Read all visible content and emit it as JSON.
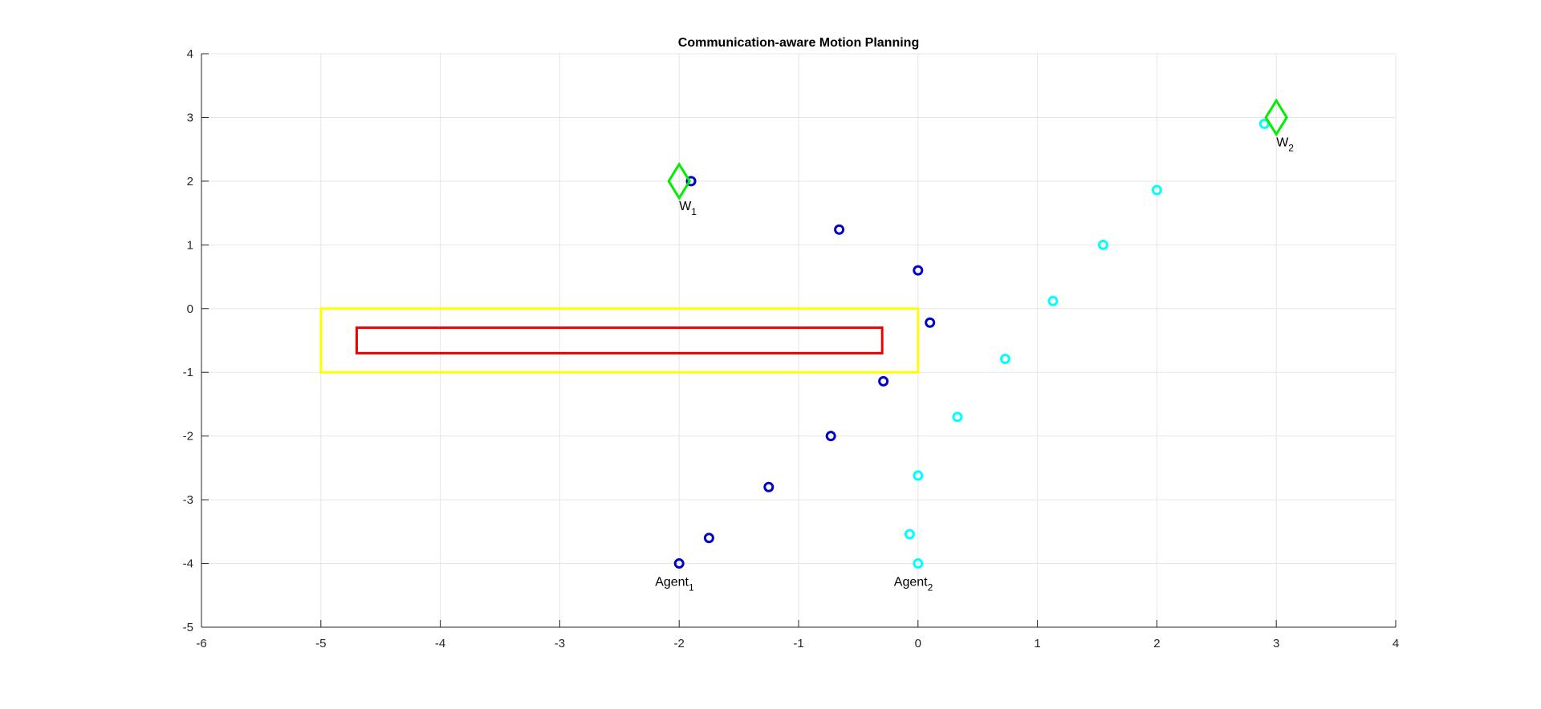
{
  "chart_data": {
    "type": "scatter",
    "title": "Communication-aware Motion Planning",
    "xlabel": "",
    "ylabel": "",
    "xlim": [
      -6,
      4
    ],
    "ylim": [
      -5,
      4
    ],
    "xticks": [
      -6,
      -5,
      -4,
      -3,
      -2,
      -1,
      0,
      1,
      2,
      3,
      4
    ],
    "yticks": [
      -5,
      -4,
      -3,
      -2,
      -1,
      0,
      1,
      2,
      3,
      4
    ],
    "grid": true,
    "colors": {
      "agent1": "#0000cc",
      "agent2": "#00ffff",
      "waypoint": "#00ee00",
      "outer_rect": "#ffff00",
      "inner_rect": "#ee0000",
      "grid": "#e5e5e5",
      "axis": "#262626"
    },
    "series": [
      {
        "key": "agent1",
        "x": [
          -2.0,
          -1.75,
          -1.25,
          -0.73,
          -0.29,
          0.1,
          0.0,
          -0.66,
          -1.9
        ],
        "y": [
          -4.0,
          -3.6,
          -2.8,
          -2.0,
          -1.14,
          -0.22,
          0.6,
          1.24,
          2.0
        ]
      },
      {
        "key": "agent2",
        "x": [
          0.0,
          -0.07,
          0.0,
          0.33,
          0.73,
          1.13,
          1.55,
          2.0,
          2.9
        ],
        "y": [
          -4.0,
          -3.54,
          -2.62,
          -1.7,
          -0.79,
          0.12,
          1.0,
          1.86,
          2.9
        ]
      }
    ],
    "waypoints": [
      {
        "x": -2,
        "y": 2,
        "label": "W",
        "sub": "1"
      },
      {
        "x": 3,
        "y": 3,
        "label": "W",
        "sub": "2"
      }
    ],
    "agent_labels": [
      {
        "x": -2,
        "y": -4,
        "label": "Agent",
        "sub": "1"
      },
      {
        "x": 0,
        "y": -4,
        "label": "Agent",
        "sub": "2"
      }
    ],
    "rectangles": [
      {
        "key": "outer_rect",
        "x0": -5,
        "x1": 0,
        "y0": -1,
        "y1": 0
      },
      {
        "key": "inner_rect",
        "x0": -4.7,
        "x1": -0.3,
        "y0": -0.7,
        "y1": -0.3
      }
    ]
  }
}
